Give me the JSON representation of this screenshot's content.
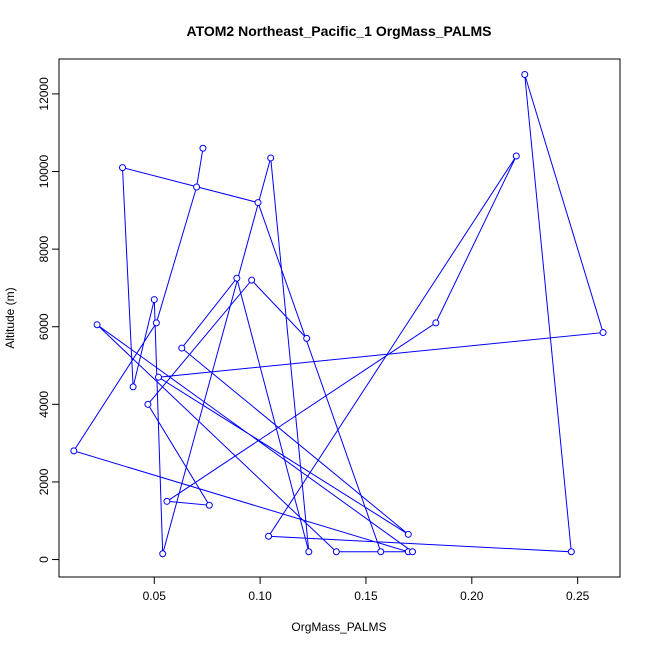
{
  "chart_data": {
    "type": "line",
    "title": "ATOM2 Northeast_Pacific_1 OrgMass_PALMS",
    "xlabel": "OrgMass_PALMS",
    "ylabel": "Altitude (m)",
    "xlim": [
      0.005,
      0.27
    ],
    "ylim": [
      -450,
      12900
    ],
    "x_ticks": [
      0.05,
      0.1,
      0.15,
      0.2,
      0.25
    ],
    "x_tick_labels": [
      "0.05",
      "0.10",
      "0.15",
      "0.20",
      "0.25"
    ],
    "y_ticks": [
      0,
      2000,
      4000,
      6000,
      8000,
      10000,
      12000
    ],
    "y_tick_labels": [
      "0",
      "2000",
      "4000",
      "6000",
      "8000",
      "10000",
      "12000"
    ],
    "grid": false,
    "series": [
      {
        "color": "#0000ff",
        "marker": "open-circle",
        "x": [
          0.073,
          0.07,
          0.051,
          0.012,
          0.17,
          0.136,
          0.023,
          0.172,
          0.157,
          0.099,
          0.035,
          0.04,
          0.05,
          0.054,
          0.105,
          0.123,
          0.089,
          0.063,
          0.17,
          0.052,
          0.262,
          0.225,
          0.247,
          0.104,
          0.221,
          0.183,
          0.056,
          0.076,
          0.047,
          0.096,
          0.122
        ],
        "y": [
          10600,
          9600,
          6100,
          2800,
          200,
          200,
          6050,
          200,
          200,
          9200,
          10100,
          4450,
          6700,
          150,
          10350,
          200,
          7250,
          5450,
          650,
          4700,
          5850,
          12500,
          200,
          600,
          10400,
          6100,
          1500,
          1400,
          4000,
          7200,
          5700
        ]
      }
    ]
  }
}
